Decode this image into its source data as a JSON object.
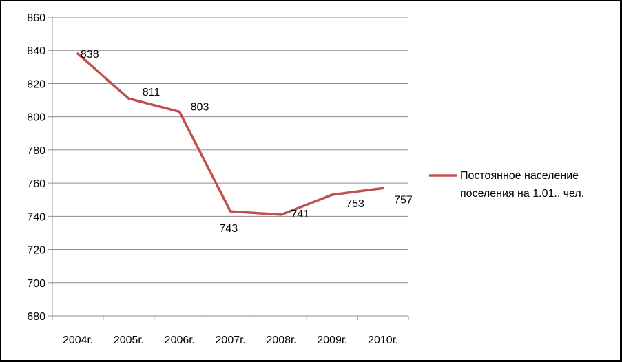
{
  "chart_data": {
    "type": "line",
    "categories": [
      "2004г.",
      "2005г.",
      "2006г.",
      "2007г.",
      "2008г.",
      "2009г.",
      "2010г."
    ],
    "series": [
      {
        "name": "Постоянное население поселения на 1.01., чел.",
        "name_lines": [
          "Постоянное население",
          "поселения на 1.01., чел."
        ],
        "values": [
          838,
          811,
          803,
          743,
          741,
          753,
          757
        ],
        "color": "#c0504d"
      }
    ],
    "ylim": [
      680,
      860
    ],
    "yticks": [
      680,
      700,
      720,
      740,
      760,
      780,
      800,
      820,
      840,
      860
    ],
    "grid": true,
    "legend": "right",
    "title": "",
    "xlabel": "",
    "ylabel": ""
  }
}
